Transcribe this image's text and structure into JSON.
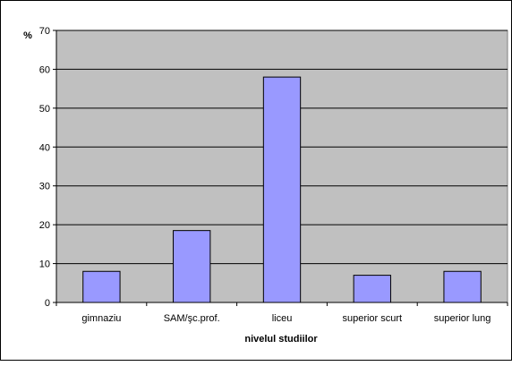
{
  "chart_data": {
    "type": "bar",
    "title": "",
    "xlabel": "nivelul studiilor",
    "ylabel": "%",
    "categories": [
      "gimnaziu",
      "SAM/şc.prof.",
      "liceu",
      "superior scurt",
      "superior lung"
    ],
    "values": [
      8,
      18.5,
      58,
      7,
      8
    ],
    "ylim": [
      0,
      70
    ],
    "yticks": [
      "0",
      "10",
      "20",
      "30",
      "40",
      "50",
      "60",
      "70"
    ],
    "grid": true,
    "legend": "none",
    "colors": {
      "plot_bg": "#c0c0c0",
      "bar_fill": "#9999ff",
      "bar_stroke": "#000000",
      "gridline": "#000000"
    }
  }
}
